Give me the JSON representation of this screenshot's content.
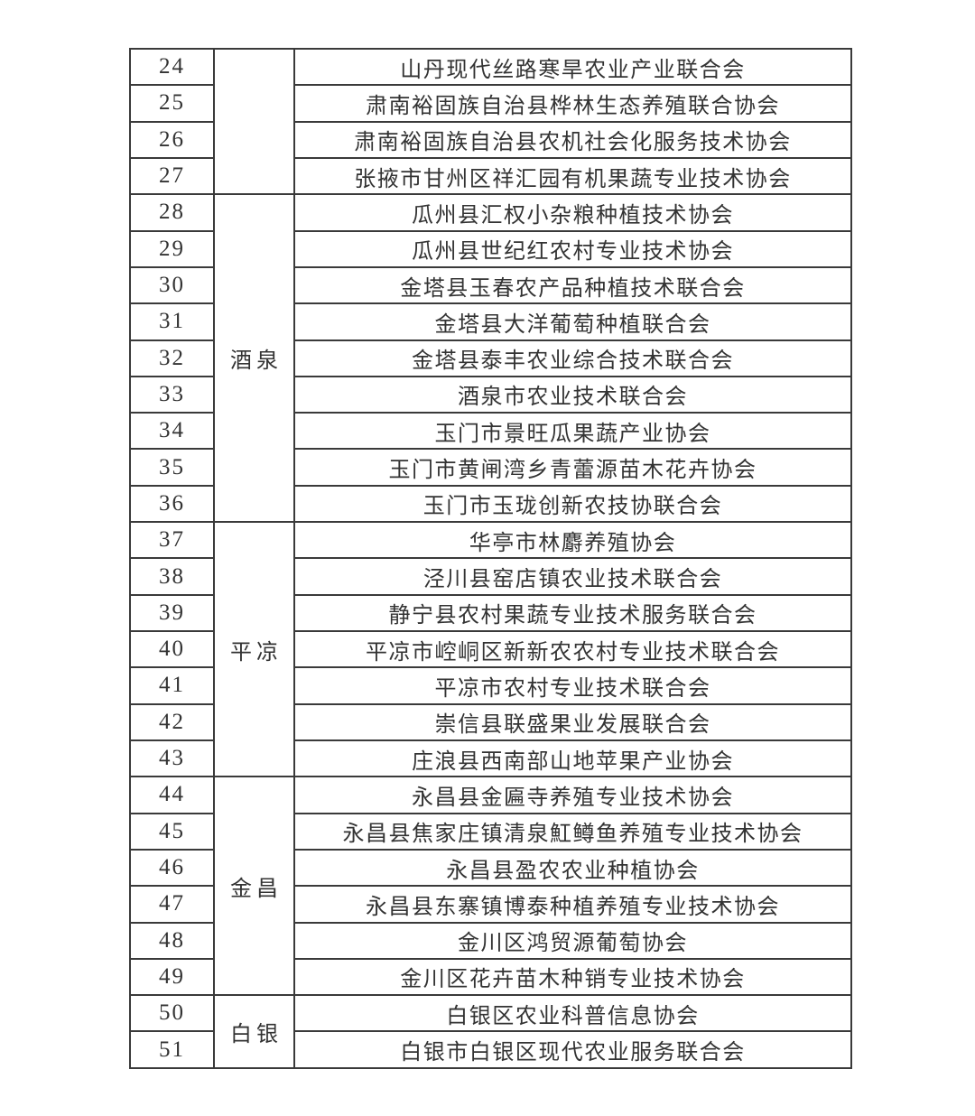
{
  "page": {
    "background_color": "#ffffff",
    "text_color": "#333333",
    "border_color": "#3a3a3a"
  },
  "table": {
    "region_groups": [
      {
        "label": "",
        "start": 24,
        "span": 4
      },
      {
        "label": "酒泉",
        "start": 28,
        "span": 9
      },
      {
        "label": "平凉",
        "start": 37,
        "span": 7
      },
      {
        "label": "金昌",
        "start": 44,
        "span": 6
      },
      {
        "label": "白银",
        "start": 50,
        "span": 2
      }
    ],
    "rows": [
      {
        "no": "24",
        "org": "山丹现代丝路寒旱农业产业联合会"
      },
      {
        "no": "25",
        "org": "肃南裕固族自治县桦林生态养殖联合协会"
      },
      {
        "no": "26",
        "org": "肃南裕固族自治县农机社会化服务技术协会"
      },
      {
        "no": "27",
        "org": "张掖市甘州区祥汇园有机果蔬专业技术协会"
      },
      {
        "no": "28",
        "org": "瓜州县汇权小杂粮种植技术协会"
      },
      {
        "no": "29",
        "org": "瓜州县世纪红农村专业技术协会"
      },
      {
        "no": "30",
        "org": "金塔县玉春农产品种植技术联合会"
      },
      {
        "no": "31",
        "org": "金塔县大洋葡萄种植联合会"
      },
      {
        "no": "32",
        "org": "金塔县泰丰农业综合技术联合会"
      },
      {
        "no": "33",
        "org": "酒泉市农业技术联合会"
      },
      {
        "no": "34",
        "org": "玉门市景旺瓜果蔬产业协会"
      },
      {
        "no": "35",
        "org": "玉门市黄闸湾乡青蕾源苗木花卉协会"
      },
      {
        "no": "36",
        "org": "玉门市玉珑创新农技协联合会"
      },
      {
        "no": "37",
        "org": "华亭市林麝养殖协会"
      },
      {
        "no": "38",
        "org": "泾川县窑店镇农业技术联合会"
      },
      {
        "no": "39",
        "org": "静宁县农村果蔬专业技术服务联合会"
      },
      {
        "no": "40",
        "org": "平凉市崆峒区新新农农村专业技术联合会"
      },
      {
        "no": "41",
        "org": "平凉市农村专业技术联合会"
      },
      {
        "no": "42",
        "org": "崇信县联盛果业发展联合会"
      },
      {
        "no": "43",
        "org": "庄浪县西南部山地苹果产业协会"
      },
      {
        "no": "44",
        "org": "永昌县金匾寺养殖专业技术协会"
      },
      {
        "no": "45",
        "org": "永昌县焦家庄镇清泉魟鳟鱼养殖专业技术协会"
      },
      {
        "no": "46",
        "org": "永昌县盈农农业种植协会"
      },
      {
        "no": "47",
        "org": "永昌县东寨镇博泰种植养殖专业技术协会"
      },
      {
        "no": "48",
        "org": "金川区鸿贸源葡萄协会"
      },
      {
        "no": "49",
        "org": "金川区花卉苗木种销专业技术协会"
      },
      {
        "no": "50",
        "org": "白银区农业科普信息协会"
      },
      {
        "no": "51",
        "org": "白银市白银区现代农业服务联合会"
      }
    ]
  }
}
